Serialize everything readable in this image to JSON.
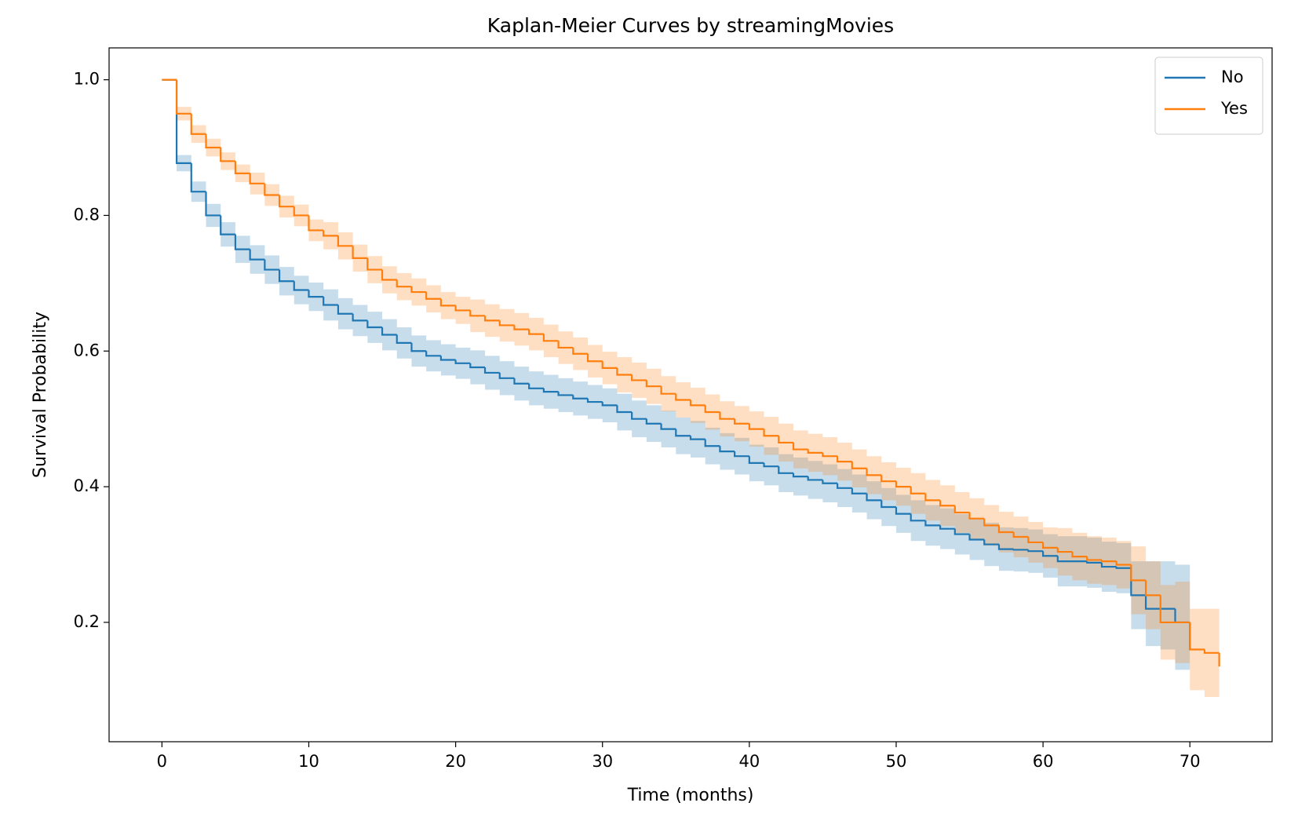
{
  "chart_data": {
    "type": "step",
    "title": "Kaplan-Meier Curves by streamingMovies",
    "x_label": "Time (months)",
    "y_label": "Survival Probability",
    "x": [
      0,
      1,
      2,
      3,
      4,
      5,
      6,
      7,
      8,
      9,
      10,
      11,
      12,
      13,
      14,
      15,
      16,
      17,
      18,
      19,
      20,
      21,
      22,
      23,
      24,
      25,
      26,
      27,
      28,
      29,
      30,
      31,
      32,
      33,
      34,
      35,
      36,
      37,
      38,
      39,
      40,
      41,
      42,
      43,
      44,
      45,
      46,
      47,
      48,
      49,
      50,
      51,
      52,
      53,
      54,
      55,
      56,
      57,
      58,
      59,
      60,
      61,
      62,
      63,
      64,
      65,
      66,
      67,
      68,
      69,
      70,
      71,
      72
    ],
    "series": [
      {
        "name": "No",
        "color": "#1f77b4",
        "values": [
          1.0,
          0.877,
          0.835,
          0.8,
          0.772,
          0.75,
          0.735,
          0.72,
          0.703,
          0.69,
          0.68,
          0.668,
          0.655,
          0.645,
          0.635,
          0.624,
          0.612,
          0.6,
          0.593,
          0.587,
          0.582,
          0.576,
          0.568,
          0.56,
          0.552,
          0.545,
          0.54,
          0.535,
          0.53,
          0.525,
          0.52,
          0.51,
          0.5,
          0.493,
          0.485,
          0.475,
          0.47,
          0.46,
          0.452,
          0.445,
          0.435,
          0.43,
          0.42,
          0.415,
          0.41,
          0.405,
          0.398,
          0.39,
          0.38,
          0.37,
          0.36,
          0.35,
          0.343,
          0.338,
          0.33,
          0.322,
          0.315,
          0.308,
          0.307,
          0.305,
          0.298,
          0.29,
          0.29,
          0.288,
          0.282,
          0.28,
          0.24,
          0.22,
          0.22,
          0.2,
          0.16,
          null,
          null
        ],
        "lower": [
          1.0,
          0.865,
          0.82,
          0.783,
          0.754,
          0.73,
          0.714,
          0.699,
          0.682,
          0.669,
          0.659,
          0.645,
          0.632,
          0.622,
          0.612,
          0.601,
          0.589,
          0.577,
          0.57,
          0.564,
          0.559,
          0.551,
          0.543,
          0.535,
          0.527,
          0.52,
          0.515,
          0.51,
          0.505,
          0.5,
          0.495,
          0.483,
          0.473,
          0.466,
          0.458,
          0.448,
          0.443,
          0.433,
          0.425,
          0.418,
          0.408,
          0.402,
          0.392,
          0.387,
          0.382,
          0.377,
          0.37,
          0.362,
          0.352,
          0.342,
          0.332,
          0.32,
          0.313,
          0.308,
          0.3,
          0.292,
          0.283,
          0.276,
          0.275,
          0.273,
          0.266,
          0.253,
          0.253,
          0.251,
          0.245,
          0.243,
          0.19,
          0.165,
          0.16,
          0.13,
          0.075,
          null,
          null
        ],
        "upper": [
          1.0,
          0.889,
          0.85,
          0.817,
          0.79,
          0.77,
          0.756,
          0.741,
          0.724,
          0.711,
          0.701,
          0.691,
          0.678,
          0.668,
          0.658,
          0.647,
          0.635,
          0.623,
          0.616,
          0.61,
          0.605,
          0.601,
          0.593,
          0.585,
          0.577,
          0.57,
          0.565,
          0.56,
          0.555,
          0.55,
          0.545,
          0.537,
          0.527,
          0.52,
          0.512,
          0.502,
          0.497,
          0.487,
          0.479,
          0.472,
          0.462,
          0.458,
          0.448,
          0.443,
          0.438,
          0.433,
          0.426,
          0.418,
          0.408,
          0.398,
          0.388,
          0.38,
          0.373,
          0.368,
          0.36,
          0.352,
          0.347,
          0.34,
          0.339,
          0.337,
          0.33,
          0.327,
          0.327,
          0.325,
          0.319,
          0.317,
          0.29,
          0.29,
          0.29,
          0.285,
          0.28,
          null,
          null
        ]
      },
      {
        "name": "Yes",
        "color": "#ff7f0e",
        "values": [
          1.0,
          0.95,
          0.92,
          0.9,
          0.88,
          0.862,
          0.847,
          0.83,
          0.813,
          0.8,
          0.778,
          0.77,
          0.755,
          0.737,
          0.72,
          0.705,
          0.695,
          0.687,
          0.677,
          0.667,
          0.66,
          0.652,
          0.645,
          0.638,
          0.632,
          0.625,
          0.615,
          0.605,
          0.596,
          0.585,
          0.575,
          0.565,
          0.557,
          0.548,
          0.537,
          0.528,
          0.52,
          0.51,
          0.5,
          0.493,
          0.485,
          0.475,
          0.465,
          0.455,
          0.45,
          0.445,
          0.437,
          0.427,
          0.417,
          0.408,
          0.4,
          0.39,
          0.38,
          0.372,
          0.362,
          0.353,
          0.343,
          0.333,
          0.326,
          0.318,
          0.31,
          0.304,
          0.297,
          0.292,
          0.29,
          0.285,
          0.262,
          0.24,
          0.2,
          0.2,
          0.16,
          0.155,
          0.135
        ],
        "lower": [
          1.0,
          0.94,
          0.907,
          0.887,
          0.867,
          0.849,
          0.831,
          0.814,
          0.797,
          0.784,
          0.762,
          0.75,
          0.735,
          0.717,
          0.7,
          0.685,
          0.675,
          0.667,
          0.657,
          0.647,
          0.64,
          0.628,
          0.621,
          0.614,
          0.608,
          0.601,
          0.591,
          0.581,
          0.572,
          0.561,
          0.551,
          0.539,
          0.531,
          0.522,
          0.511,
          0.502,
          0.494,
          0.484,
          0.474,
          0.467,
          0.459,
          0.447,
          0.437,
          0.427,
          0.422,
          0.417,
          0.409,
          0.399,
          0.389,
          0.38,
          0.372,
          0.36,
          0.35,
          0.342,
          0.332,
          0.323,
          0.313,
          0.303,
          0.296,
          0.288,
          0.28,
          0.269,
          0.262,
          0.257,
          0.255,
          0.25,
          0.212,
          0.19,
          0.145,
          0.14,
          0.1,
          0.09,
          0.07
        ],
        "upper": [
          1.0,
          0.96,
          0.933,
          0.913,
          0.893,
          0.875,
          0.863,
          0.846,
          0.829,
          0.816,
          0.794,
          0.79,
          0.775,
          0.757,
          0.74,
          0.725,
          0.715,
          0.707,
          0.697,
          0.687,
          0.68,
          0.676,
          0.669,
          0.662,
          0.656,
          0.649,
          0.639,
          0.629,
          0.62,
          0.609,
          0.599,
          0.591,
          0.583,
          0.574,
          0.563,
          0.554,
          0.546,
          0.536,
          0.526,
          0.519,
          0.511,
          0.503,
          0.493,
          0.483,
          0.478,
          0.473,
          0.465,
          0.455,
          0.445,
          0.436,
          0.428,
          0.42,
          0.41,
          0.402,
          0.392,
          0.383,
          0.373,
          0.363,
          0.356,
          0.348,
          0.34,
          0.339,
          0.332,
          0.327,
          0.325,
          0.32,
          0.312,
          0.29,
          0.255,
          0.26,
          0.22,
          0.22,
          0.205
        ]
      }
    ],
    "xlim": [
      -3.6,
      75.6
    ],
    "xticks": [
      0,
      10,
      20,
      30,
      40,
      50,
      60,
      70
    ],
    "ylim": [
      0.024,
      1.047
    ],
    "yticks": [
      0.2,
      0.4,
      0.6,
      0.8,
      {
        "value": 1.0,
        "label": "1.0"
      }
    ],
    "grid": false,
    "legend": "upper right",
    "band_opacity": 0.25
  }
}
